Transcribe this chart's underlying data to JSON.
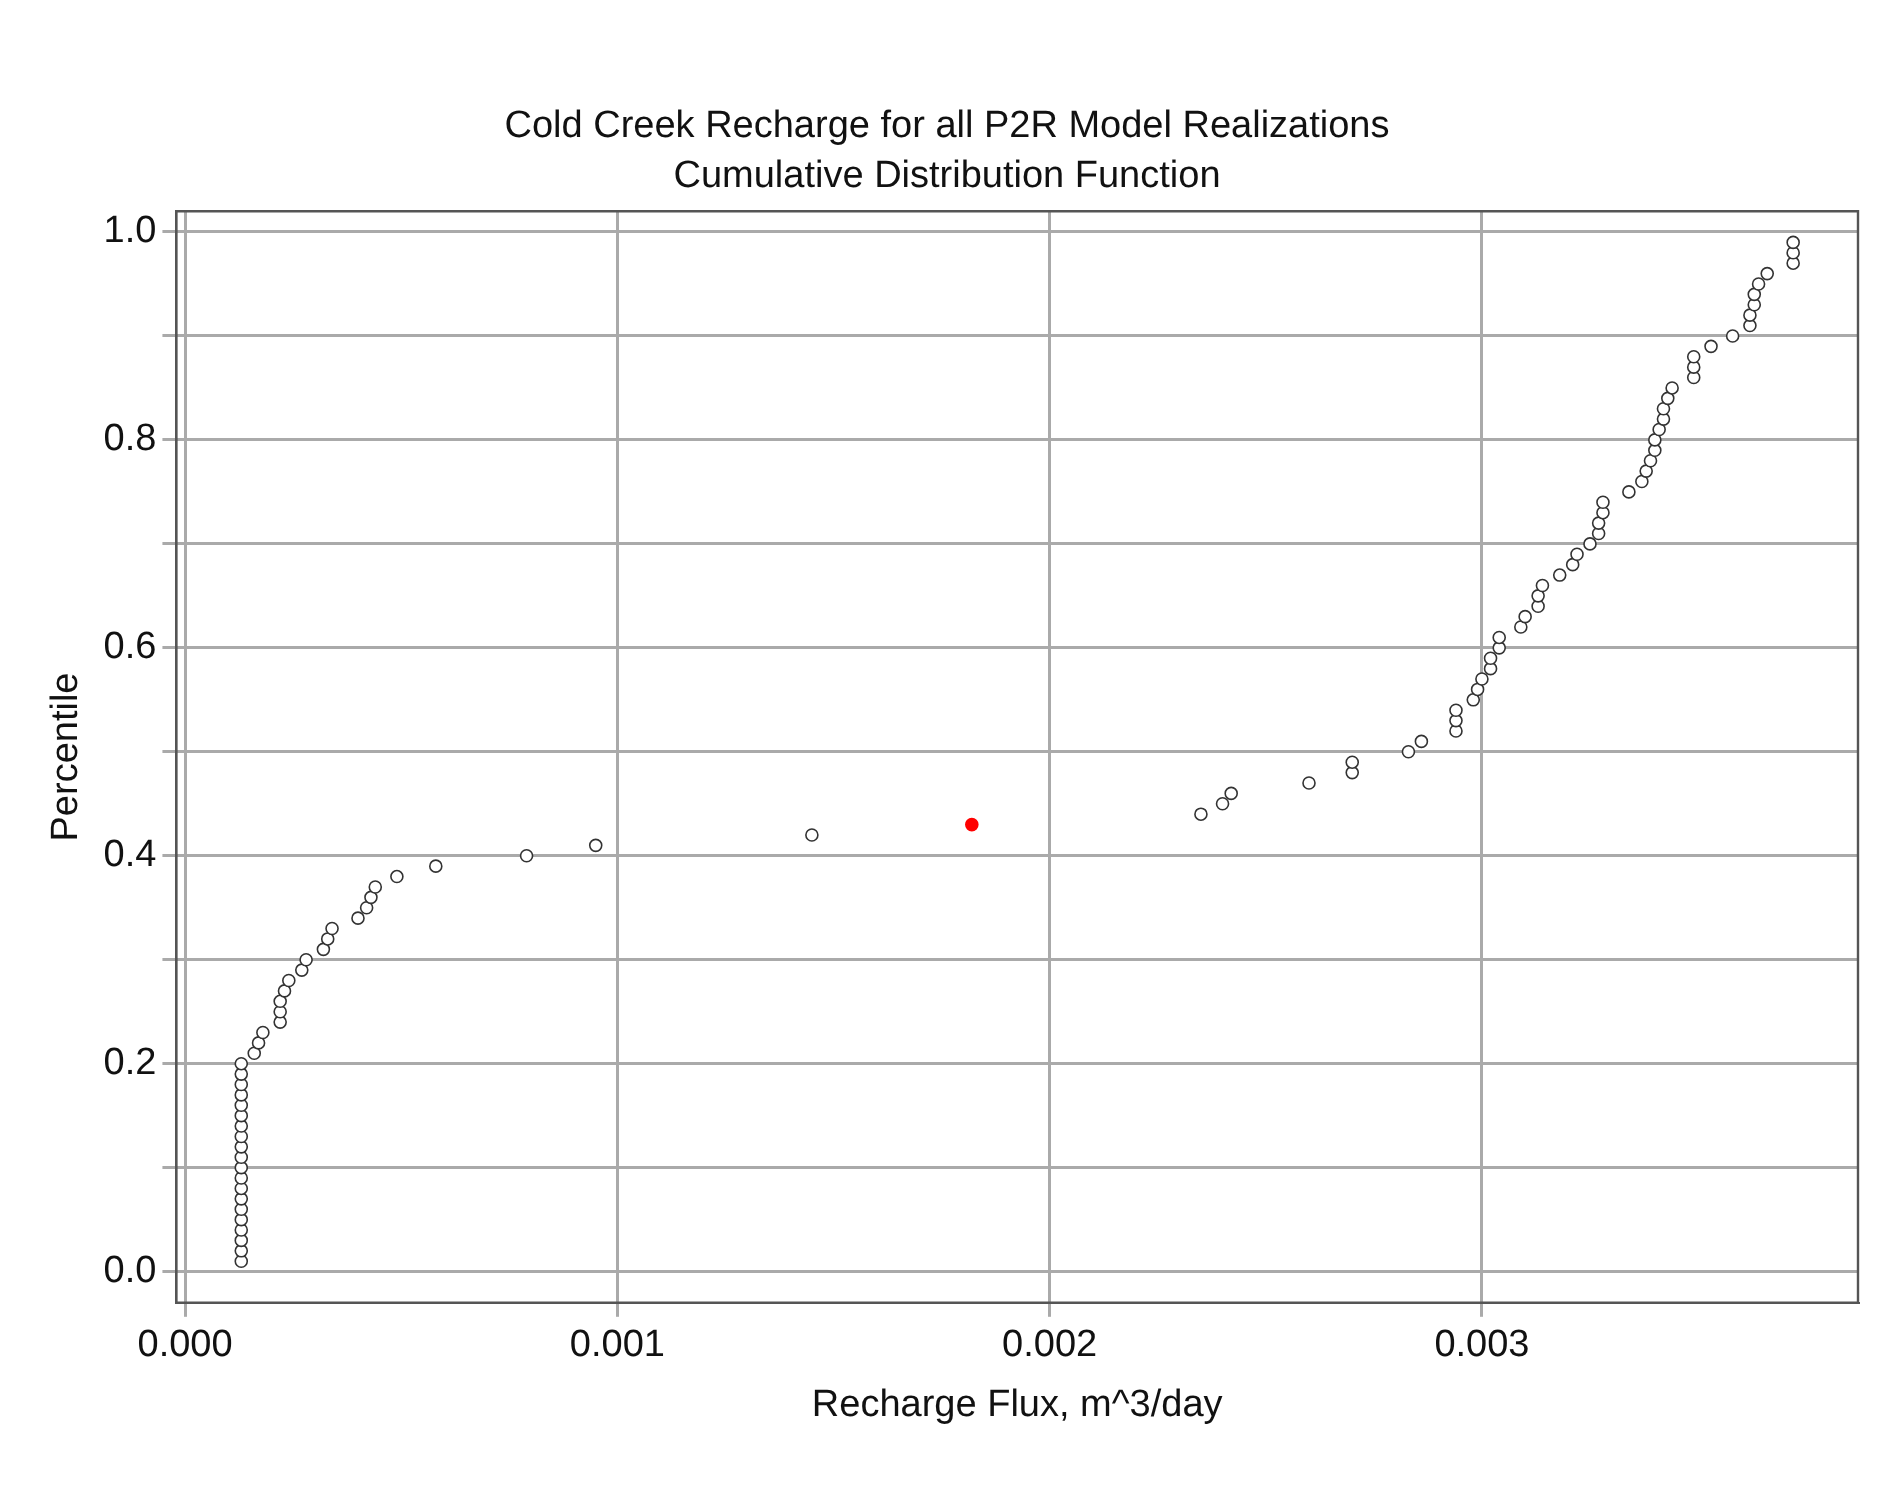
{
  "chart_data": {
    "type": "scatter",
    "title": "Cold Creek Recharge for all P2R Model Realizations",
    "subtitle": "Cumulative Distribution Function",
    "xlabel": "Recharge Flux, m^3/day",
    "ylabel": "Percentile",
    "xlim": [
      -2e-05,
      0.00387
    ],
    "ylim": [
      -0.03,
      1.02
    ],
    "xticks": [
      {
        "value": 0,
        "label": "0.000"
      },
      {
        "value": 0.001,
        "label": "0.001"
      },
      {
        "value": 0.002,
        "label": "0.002"
      },
      {
        "value": 0.003,
        "label": "0.003"
      }
    ],
    "yticks": [
      {
        "value": 0,
        "label": "0.0"
      },
      {
        "value": 0.1,
        "label": null
      },
      {
        "value": 0.2,
        "label": "0.2"
      },
      {
        "value": 0.3,
        "label": null
      },
      {
        "value": 0.4,
        "label": "0.4"
      },
      {
        "value": 0.5,
        "label": null
      },
      {
        "value": 0.6,
        "label": "0.6"
      },
      {
        "value": 0.7,
        "label": null
      },
      {
        "value": 0.8,
        "label": "0.8"
      },
      {
        "value": 0.9,
        "label": null
      },
      {
        "value": 1,
        "label": "1.0"
      }
    ],
    "grid": true,
    "legend": false,
    "marker": "circle",
    "series": [
      {
        "color": "#333333",
        "x": [
          0.00013,
          0.00013,
          0.00013,
          0.00013,
          0.00013,
          0.00013,
          0.00013,
          0.00013,
          0.00013,
          0.00013,
          0.00013,
          0.00013,
          0.00013,
          0.00013,
          0.00013,
          0.00013,
          0.00013,
          0.00013,
          0.00013,
          0.00013,
          0.00016,
          0.00017,
          0.00018,
          0.00022,
          0.00022,
          0.00022,
          0.00023,
          0.00024,
          0.00027,
          0.00028,
          0.00032,
          0.00033,
          0.00034,
          0.0004,
          0.00042,
          0.00043,
          0.00044,
          0.00049,
          0.00058,
          0.00079,
          0.00095,
          0.00145,
          0.00235,
          0.0024,
          0.00242,
          0.0026,
          0.0027,
          0.0027,
          0.00283,
          0.00286,
          0.00294,
          0.00294,
          0.00294,
          0.00298,
          0.00299,
          0.003,
          0.00302,
          0.00302,
          0.00304,
          0.00304,
          0.00309,
          0.0031,
          0.00313,
          0.00313,
          0.00314,
          0.00318,
          0.00321,
          0.00322,
          0.00325,
          0.00327,
          0.00327,
          0.00328,
          0.00328,
          0.00334,
          0.00337,
          0.00338,
          0.00339,
          0.0034,
          0.0034,
          0.00341,
          0.00342,
          0.00342,
          0.00343,
          0.00344,
          0.00349,
          0.00349,
          0.00349,
          0.00353,
          0.00358,
          0.00362,
          0.00362,
          0.00363,
          0.00363,
          0.00364,
          0.00366,
          0.00372,
          0.00372,
          0.00372
        ],
        "values": [
          0.01,
          0.02,
          0.03,
          0.04,
          0.05,
          0.06,
          0.07,
          0.08,
          0.09,
          0.1,
          0.11,
          0.12,
          0.13,
          0.14,
          0.15,
          0.16,
          0.17,
          0.18,
          0.19,
          0.2,
          0.21,
          0.22,
          0.23,
          0.24,
          0.25,
          0.26,
          0.27,
          0.28,
          0.29,
          0.3,
          0.31,
          0.32,
          0.33,
          0.34,
          0.35,
          0.36,
          0.37,
          0.38,
          0.39,
          0.4,
          0.41,
          0.42,
          0.44,
          0.45,
          0.46,
          0.47,
          0.48,
          0.49,
          0.5,
          0.51,
          0.52,
          0.53,
          0.54,
          0.55,
          0.56,
          0.57,
          0.58,
          0.59,
          0.6,
          0.61,
          0.62,
          0.63,
          0.64,
          0.65,
          0.66,
          0.67,
          0.68,
          0.69,
          0.7,
          0.71,
          0.72,
          0.73,
          0.74,
          0.75,
          0.76,
          0.77,
          0.78,
          0.79,
          0.8,
          0.81,
          0.82,
          0.83,
          0.84,
          0.85,
          0.86,
          0.87,
          0.88,
          0.89,
          0.9,
          0.91,
          0.92,
          0.93,
          0.94,
          0.95,
          0.96,
          0.97,
          0.98,
          0.99
        ]
      },
      {
        "color": "#ff0000",
        "x": [
          0.00182
        ],
        "values": [
          0.43
        ]
      }
    ]
  }
}
